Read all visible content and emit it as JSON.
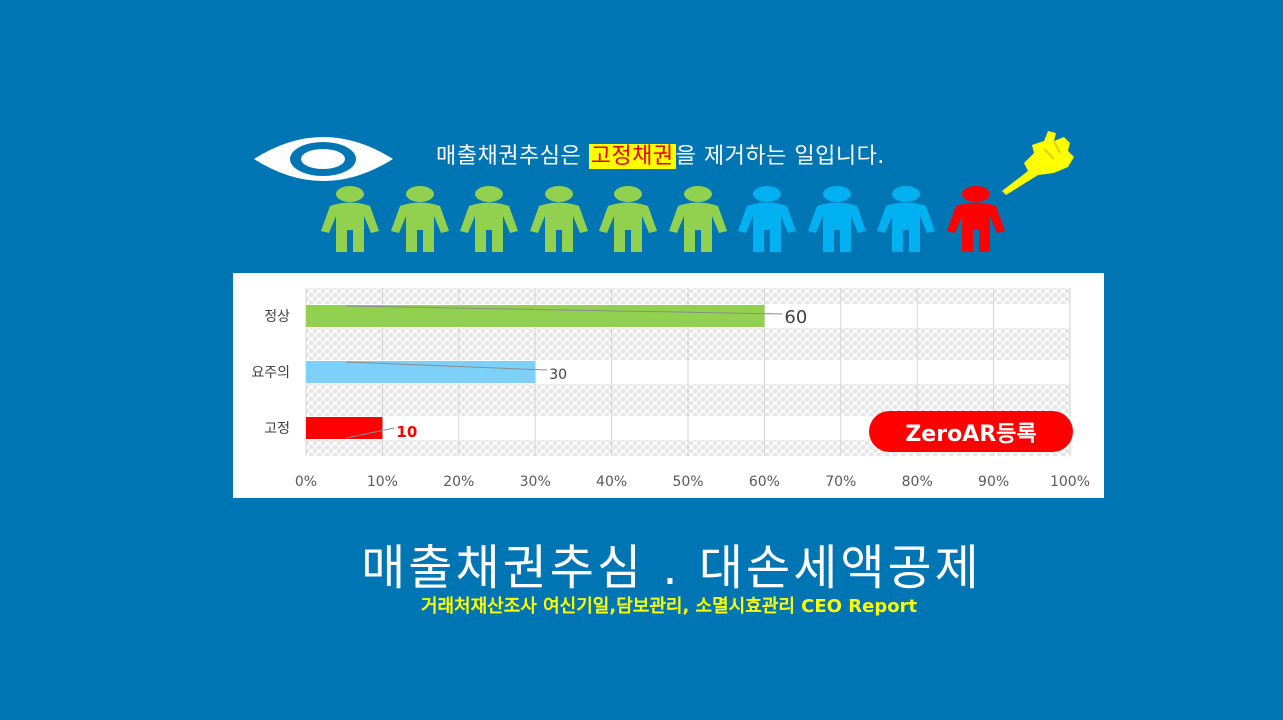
{
  "headline": {
    "before": "매출채권추심은 ",
    "highlight": "고정채권",
    "after": "을 제거하는 일입니다."
  },
  "icons": {
    "eye": "eye-icon",
    "hand": "pointing-hand-icon",
    "person": "person-icon"
  },
  "people": {
    "colors": [
      "#92d050",
      "#92d050",
      "#92d050",
      "#92d050",
      "#92d050",
      "#92d050",
      "#00b0f0",
      "#00b0f0",
      "#00b0f0",
      "#ff0000"
    ]
  },
  "chart_data": {
    "type": "bar",
    "orientation": "horizontal",
    "categories": [
      "정상",
      "요주의",
      "고정"
    ],
    "values": [
      60,
      30,
      10
    ],
    "data_labels": [
      "60",
      "30",
      "10"
    ],
    "colors": [
      "#92d050",
      "#7dd0f8",
      "#ff0000"
    ],
    "x_ticks": [
      "0%",
      "10%",
      "20%",
      "30%",
      "40%",
      "50%",
      "60%",
      "70%",
      "80%",
      "90%",
      "100%"
    ],
    "xlim": [
      0,
      100
    ],
    "grid": true
  },
  "badge": {
    "label": "ZeroAR등록"
  },
  "footer": {
    "title": "매출채권추심 . 대손세액공제",
    "subtitle": "거래처재산조사 여신기일,담보관리, 소멸시효관리 CEO Report"
  }
}
